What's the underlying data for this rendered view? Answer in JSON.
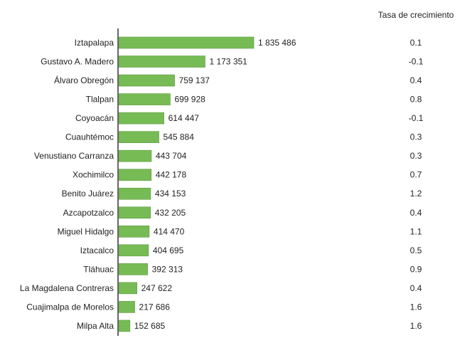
{
  "chart_data": {
    "type": "bar",
    "orientation": "horizontal",
    "categories": [
      "Iztapalapa",
      "Gustavo A. Madero",
      "Álvaro Obregón",
      "Tlalpan",
      "Coyoacán",
      "Cuauhtémoc",
      "Venustiano Carranza",
      "Xochimilco",
      "Benito Juárez",
      "Azcapotzalco",
      "Miguel Hidalgo",
      "Iztacalco",
      "Tláhuac",
      "La Magdalena Contreras",
      "Cuajimalpa de Morelos",
      "Milpa Alta"
    ],
    "values": [
      1835486,
      1173351,
      759137,
      699928,
      614447,
      545884,
      443704,
      442178,
      434153,
      432205,
      414470,
      404695,
      392313,
      247622,
      217686,
      152685
    ],
    "value_labels": [
      "1 835 486",
      "1 173 351",
      "759 137",
      "699 928",
      "614 447",
      "545 884",
      "443 704",
      "442 178",
      "434 153",
      "432 205",
      "414 470",
      "404 695",
      "392 313",
      "247 622",
      "217 686",
      "152 685"
    ],
    "growth_header": "Tasa de crecimiento",
    "growth": [
      "0.1",
      "-0.1",
      "0.4",
      "0.8",
      "-0.1",
      "0.3",
      "0.3",
      "0.7",
      "1.2",
      "0.4",
      "1.1",
      "0.5",
      "0.9",
      "0.4",
      "1.6",
      "1.6"
    ],
    "title": "",
    "xlabel": "",
    "ylabel": "",
    "bar_color": "#77bb55",
    "bar_edge_color": "#5e9a42",
    "axis_color": "#666666",
    "grid": false
  }
}
